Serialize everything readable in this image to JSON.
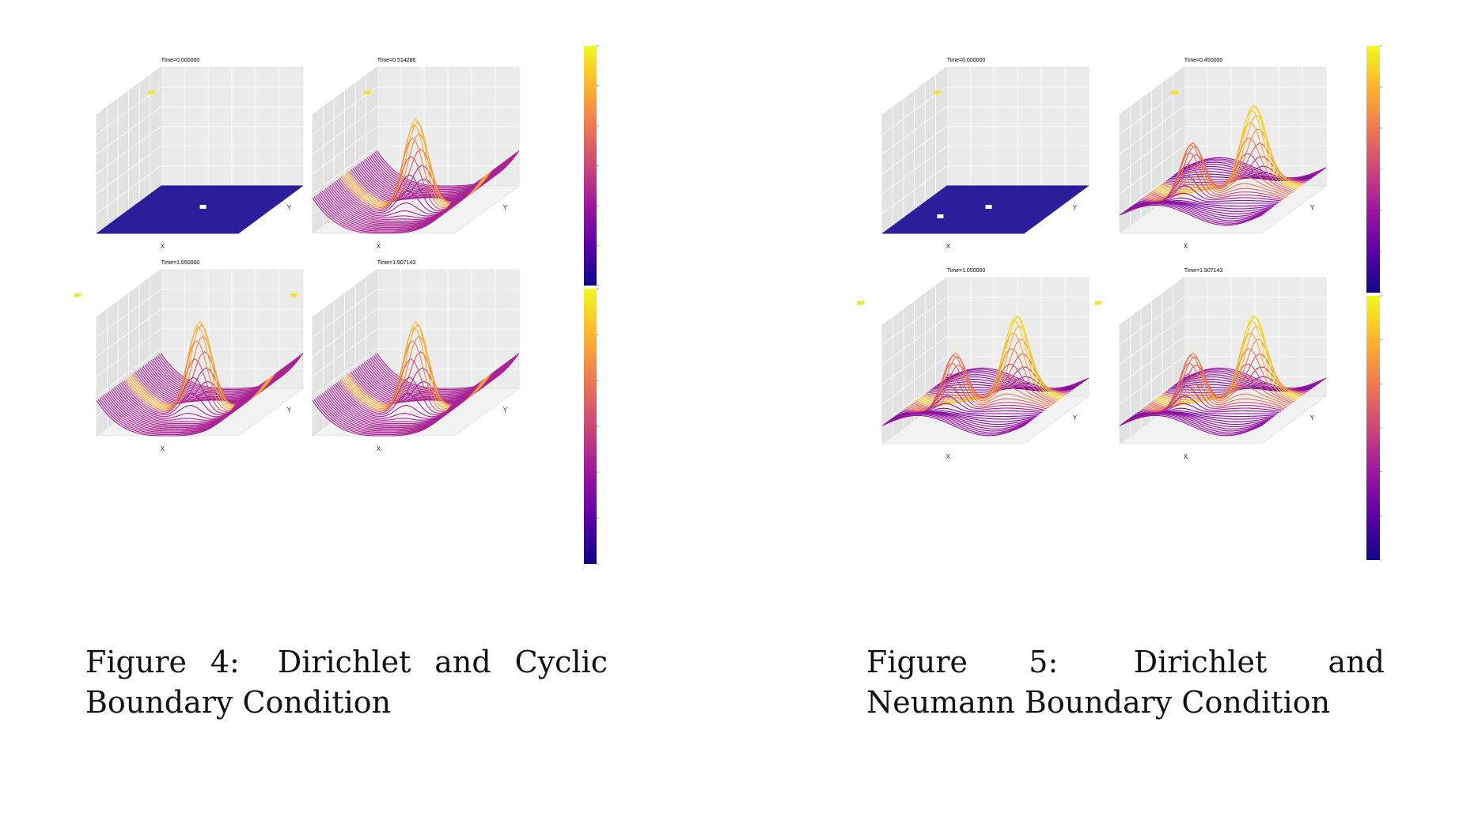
{
  "colormap": [
    "#0d0887",
    "#5c01a6",
    "#9c179e",
    "#cc4778",
    "#ed7953",
    "#fdb42f",
    "#f0f921"
  ],
  "figures": [
    {
      "id": "fig4",
      "label": "Figure 4:",
      "caption": "Dirichlet and Cyclic Boundary Condition",
      "panels": [
        {
          "title": "Time=0.000000",
          "xlabel": "X",
          "ylabel": "Y",
          "kind": "flat1"
        },
        {
          "title": "Time=0.514286",
          "xlabel": "X",
          "ylabel": "Y",
          "kind": "peak1"
        },
        {
          "title": "Time=1.050000",
          "xlabel": "X",
          "ylabel": "Y",
          "kind": "peak1"
        },
        {
          "title": "Time=1.907143",
          "xlabel": "X",
          "ylabel": "Y",
          "kind": "peak1"
        }
      ]
    },
    {
      "id": "fig5",
      "label": "Figure 5:",
      "caption": "Dirichlet and Neumann Boundary Condition",
      "panels": [
        {
          "title": "Time=0.000000",
          "xlabel": "X",
          "ylabel": "Y",
          "kind": "flat2"
        },
        {
          "title": "Time=0.450000",
          "xlabel": "X",
          "ylabel": "Y",
          "kind": "peak2"
        },
        {
          "title": "Time=1.050000",
          "xlabel": "X",
          "ylabel": "Y",
          "kind": "peak2"
        },
        {
          "title": "Time=1.907143",
          "xlabel": "X",
          "ylabel": "Y",
          "kind": "peak2"
        }
      ]
    }
  ]
}
